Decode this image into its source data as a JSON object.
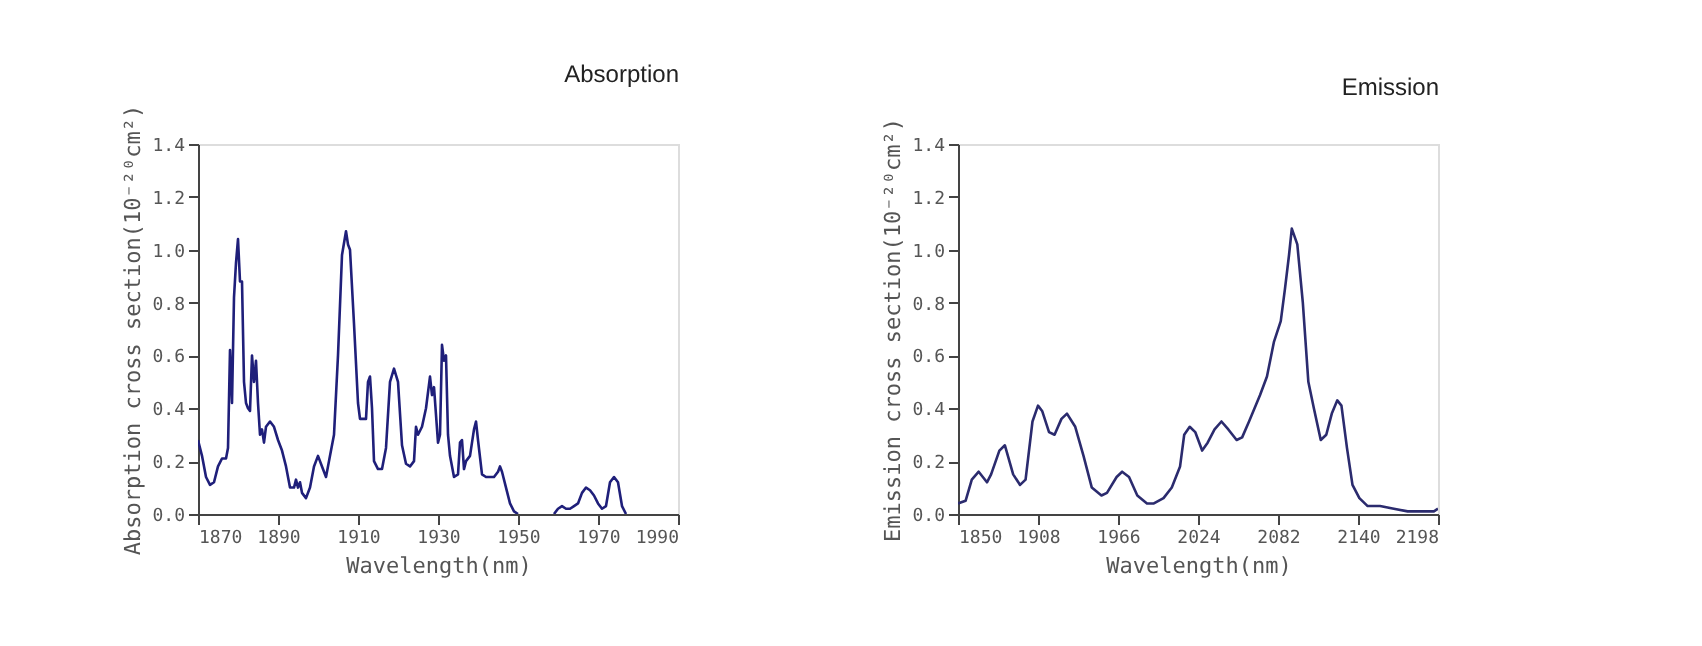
{
  "chart_data": [
    {
      "type": "line",
      "title": "Absorption",
      "xlabel": "Wavelength(nm)",
      "ylabel": "Absorption cross section(10⁻²⁰cm²)",
      "xlim": [
        1870,
        1990
      ],
      "xticks": [
        1870,
        1890,
        1910,
        1930,
        1950,
        1970,
        1990
      ],
      "ylim": [
        0,
        1.4
      ],
      "yticks": [
        {
          "value": 0,
          "label": "0.0"
        },
        {
          "value": 0.2,
          "label": "0.2"
        },
        {
          "value": 0.4,
          "label": "0.4"
        },
        {
          "value": 0.6,
          "label": "0.6"
        },
        {
          "value": 0.8,
          "label": "0.8"
        },
        {
          "value": 1,
          "label": "1.0"
        },
        {
          "value": 1.2,
          "label": "1.2"
        },
        {
          "value": 1.4,
          "label": "1.4"
        }
      ],
      "grid": false,
      "marker": "none",
      "line_style": "solid",
      "x": [
        1870,
        1871,
        1872,
        1873,
        1874,
        1875,
        1876,
        1877,
        1877.5,
        1878,
        1878.5,
        1879,
        1879.5,
        1880,
        1880.5,
        1881,
        1881.5,
        1882,
        1882.5,
        1883,
        1883.5,
        1884,
        1884.5,
        1885,
        1885.5,
        1886,
        1886.5,
        1887,
        1888,
        1889,
        1890,
        1891,
        1892,
        1893,
        1894,
        1894.5,
        1895,
        1895.5,
        1896,
        1897,
        1898,
        1899,
        1900,
        1901,
        1902,
        1903,
        1904,
        1905,
        1906,
        1907,
        1907.5,
        1908,
        1909,
        1910,
        1910.5,
        1912,
        1912.5,
        1913,
        1913.5,
        1914,
        1915,
        1916,
        1917,
        1918,
        1919,
        1920,
        1921,
        1922,
        1923,
        1924,
        1924.5,
        1925,
        1926,
        1927,
        1928,
        1928.5,
        1929,
        1930,
        1930.5,
        1931,
        1931.5,
        1932,
        1932.5,
        1933,
        1934,
        1935,
        1935.5,
        1936,
        1936.5,
        1937,
        1938,
        1939,
        1939.5,
        1940,
        1941,
        1942,
        1943,
        1944,
        1945,
        1945.5,
        1946,
        1947,
        1948,
        1949,
        1950,
        1955,
        1959,
        1960,
        1961,
        1962,
        1963,
        1964,
        1965,
        1966,
        1967,
        1968,
        1969,
        1970,
        1971,
        1972,
        1973,
        1974,
        1975,
        1976,
        1977
      ],
      "series": [
        {
          "color": "#1f1f7a",
          "values": [
            0.28,
            0.22,
            0.14,
            0.11,
            0.12,
            0.18,
            0.21,
            0.21,
            0.25,
            0.62,
            0.42,
            0.82,
            0.95,
            1.04,
            0.88,
            0.88,
            0.5,
            0.42,
            0.4,
            0.39,
            0.6,
            0.5,
            0.58,
            0.42,
            0.3,
            0.32,
            0.27,
            0.33,
            0.35,
            0.33,
            0.28,
            0.24,
            0.18,
            0.1,
            0.1,
            0.13,
            0.1,
            0.12,
            0.08,
            0.06,
            0.1,
            0.18,
            0.22,
            0.18,
            0.14,
            0.22,
            0.3,
            0.6,
            0.98,
            1.07,
            1.02,
            1.0,
            0.72,
            0.42,
            0.36,
            0.36,
            0.5,
            0.52,
            0.4,
            0.2,
            0.17,
            0.17,
            0.25,
            0.5,
            0.55,
            0.5,
            0.26,
            0.19,
            0.18,
            0.2,
            0.33,
            0.3,
            0.33,
            0.4,
            0.52,
            0.45,
            0.48,
            0.27,
            0.3,
            0.64,
            0.58,
            0.6,
            0.3,
            0.22,
            0.14,
            0.15,
            0.27,
            0.28,
            0.17,
            0.2,
            0.22,
            0.32,
            0.35,
            0.28,
            0.15,
            0.14,
            0.14,
            0.14,
            0.16,
            0.18,
            0.16,
            0.1,
            0.04,
            0.01,
            0.0,
            null,
            0.0,
            0.02,
            0.03,
            0.02,
            0.02,
            0.03,
            0.04,
            0.08,
            0.1,
            0.09,
            0.07,
            0.04,
            0.02,
            0.03,
            0.12,
            0.14,
            0.12,
            0.03,
            0.0
          ]
        }
      ]
    },
    {
      "type": "line",
      "title": "Emission",
      "xlabel": "Wavelength(nm)",
      "ylabel": "Emission cross section(10⁻²⁰cm²)",
      "xlim": [
        1850,
        2198
      ],
      "xticks": [
        1850,
        1908,
        1966,
        2024,
        2082,
        2140,
        2198
      ],
      "ylim": [
        0,
        1.4
      ],
      "yticks": [
        {
          "value": 0,
          "label": "0.0"
        },
        {
          "value": 0.2,
          "label": "0.2"
        },
        {
          "value": 0.4,
          "label": "0.4"
        },
        {
          "value": 0.6,
          "label": "0.6"
        },
        {
          "value": 0.8,
          "label": "0.8"
        },
        {
          "value": 1,
          "label": "1.0"
        },
        {
          "value": 1.2,
          "label": "1.2"
        },
        {
          "value": 1.4,
          "label": "1.4"
        }
      ],
      "grid": false,
      "marker": "none",
      "line_style": "solid",
      "x": [
        1850,
        1855.5,
        1860,
        1865,
        1871,
        1874,
        1880,
        1884,
        1890,
        1895,
        1899,
        1904,
        1908,
        1911,
        1916,
        1920,
        1925,
        1929,
        1935,
        1941,
        1947,
        1954,
        1958,
        1965,
        1969,
        1974,
        1980,
        1987,
        1992,
        1999,
        2005,
        2011,
        2014,
        2018,
        2022,
        2027,
        2031,
        2036,
        2041,
        2046,
        2052,
        2056,
        2061,
        2069,
        2074,
        2079,
        2084,
        2087,
        2090,
        2092,
        2096,
        2100,
        2104,
        2108,
        2113,
        2117,
        2121,
        2125,
        2128,
        2132,
        2136,
        2141,
        2147,
        2156,
        2166,
        2176,
        2185,
        2195,
        2198
      ],
      "series": [
        {
          "color": "#2b2b6e",
          "values": [
            0.04,
            0.05,
            0.13,
            0.16,
            0.12,
            0.15,
            0.24,
            0.26,
            0.15,
            0.11,
            0.13,
            0.35,
            0.41,
            0.39,
            0.31,
            0.3,
            0.36,
            0.38,
            0.33,
            0.22,
            0.1,
            0.07,
            0.08,
            0.14,
            0.16,
            0.14,
            0.07,
            0.04,
            0.04,
            0.06,
            0.1,
            0.18,
            0.3,
            0.33,
            0.31,
            0.24,
            0.27,
            0.32,
            0.35,
            0.32,
            0.28,
            0.29,
            0.35,
            0.45,
            0.52,
            0.65,
            0.73,
            0.85,
            0.98,
            1.08,
            1.02,
            0.8,
            0.5,
            0.4,
            0.28,
            0.3,
            0.38,
            0.43,
            0.41,
            0.25,
            0.11,
            0.06,
            0.03,
            0.03,
            0.02,
            0.01,
            0.01,
            0.01,
            0.02
          ]
        }
      ]
    }
  ]
}
